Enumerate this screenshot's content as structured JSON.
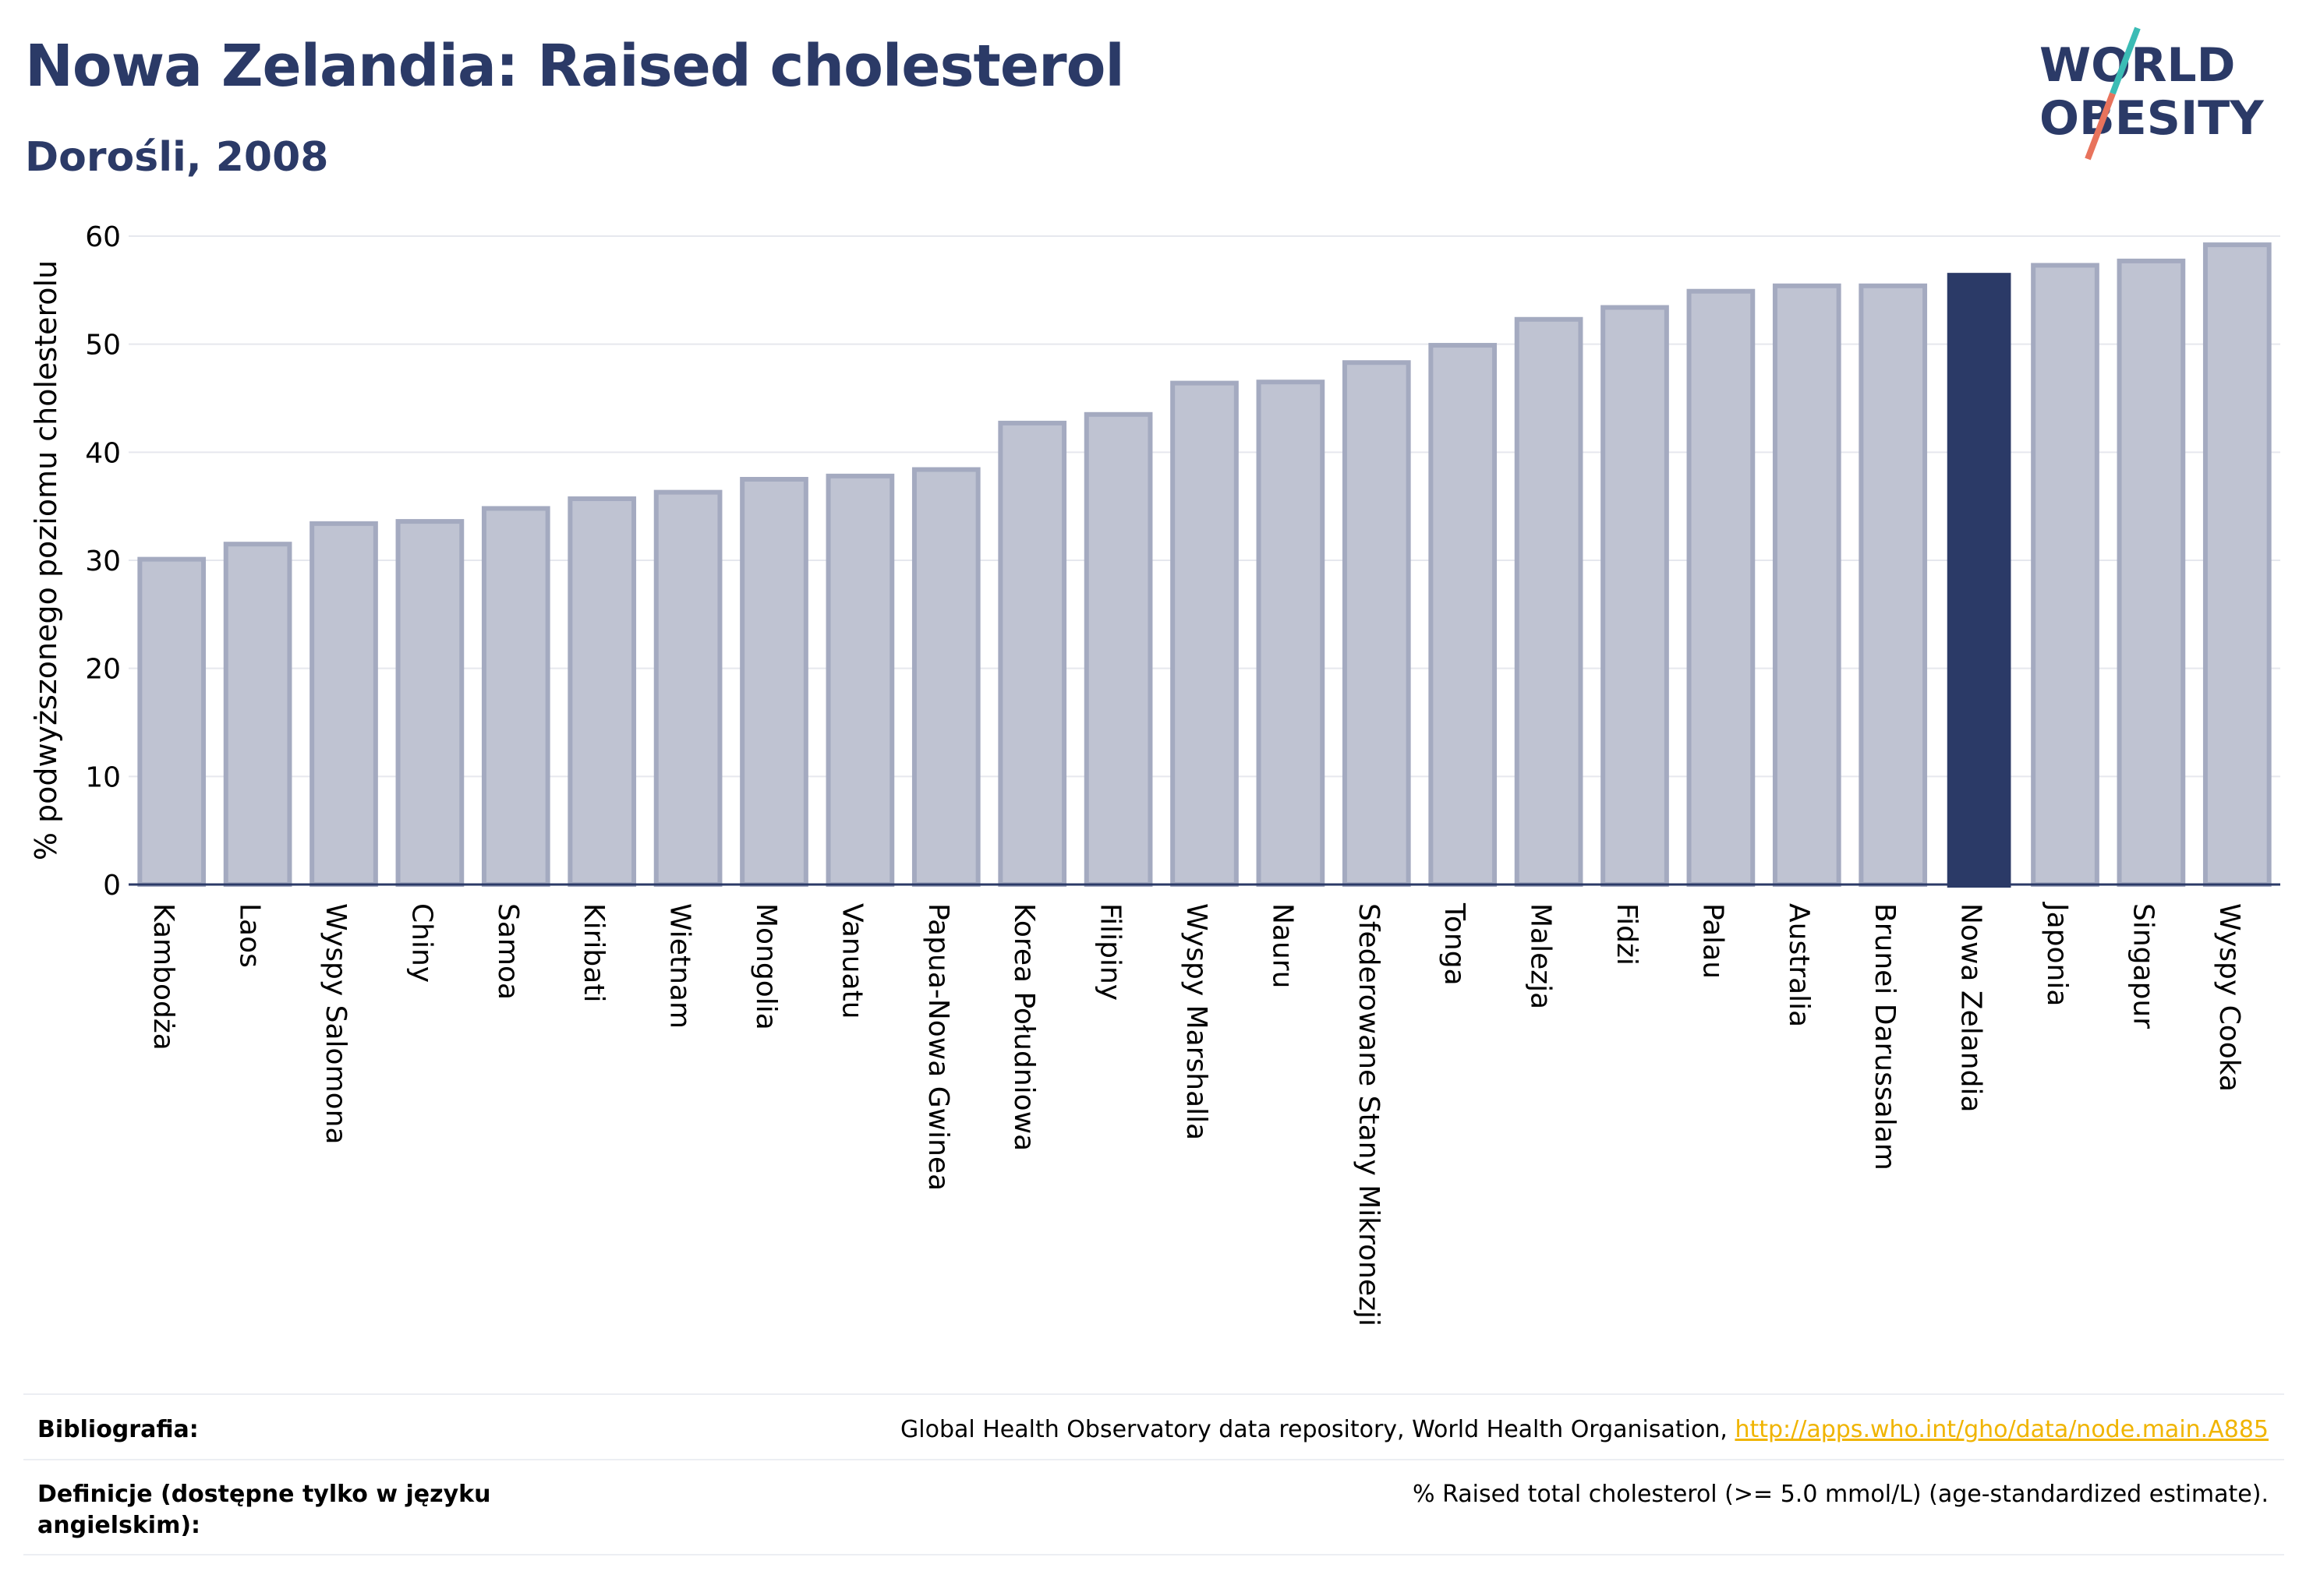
{
  "header": {
    "title": "Nowa Zelandia: Raised cholesterol",
    "subtitle": "Dorośli, 2008"
  },
  "logo": {
    "line1": "WORLD",
    "line2": "OBESITY",
    "colors": {
      "text": "#2b3a67",
      "slash_teal": "#3bbcb5",
      "slash_coral": "#e8735c"
    }
  },
  "chart_data": {
    "type": "bar",
    "title": "Nowa Zelandia: Raised cholesterol",
    "subtitle": "Dorośli, 2008",
    "ylabel": "% podwyższonego poziomu cholesterolu",
    "xlabel": "",
    "ylim": [
      0,
      60
    ],
    "yticks": [
      0,
      10,
      20,
      30,
      40,
      50,
      60
    ],
    "grid": true,
    "highlight": "Nowa Zelandia",
    "colors": {
      "bar": "#bfc3d2",
      "bar_edge": "#a4aac0",
      "highlight": "#2b3a67",
      "grid": "#e6e8ee",
      "axis": "#2b3a67"
    },
    "categories": [
      "Kambodża",
      "Laos",
      "Wyspy Salomona",
      "Chiny",
      "Samoa",
      "Kiribati",
      "Wietnam",
      "Mongolia",
      "Vanuatu",
      "Papua-Nowa Gwinea",
      "Korea Południowa",
      "Filipiny",
      "Wyspy Marshalla",
      "Nauru",
      "Sfederowane Stany Mikronezji",
      "Tonga",
      "Malezja",
      "Fidżi",
      "Palau",
      "Australia",
      "Brunei Darussalam",
      "Nowa Zelandia",
      "Japonia",
      "Singapur",
      "Wyspy Cooka"
    ],
    "values": [
      30.1,
      31.5,
      33.4,
      33.6,
      34.8,
      35.7,
      36.3,
      37.5,
      37.8,
      38.4,
      42.7,
      43.5,
      46.4,
      46.5,
      48.3,
      49.9,
      52.3,
      53.4,
      54.9,
      55.4,
      55.4,
      56.6,
      57.3,
      57.7,
      59.2
    ]
  },
  "footer": {
    "bibliography_label": "Bibliografia:",
    "bibliography_text": "Global Health Observatory data repository, World Health Organisation, ",
    "bibliography_link": "http://apps.who.int/gho/data/node.main.A885",
    "definitions_label": "Definicje (dostępne tylko w języku angielskim):",
    "definitions_text": "% Raised total cholesterol (>= 5.0 mmol/L) (age-standardized estimate)."
  }
}
